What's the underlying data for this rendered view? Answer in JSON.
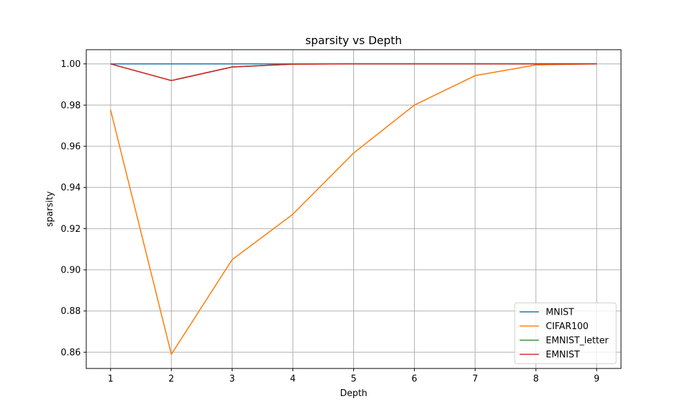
{
  "chart_data": {
    "type": "line",
    "title": "sparsity vs Depth",
    "xlabel": "Depth",
    "ylabel": "sparsity",
    "x": [
      1,
      2,
      3,
      4,
      5,
      6,
      7,
      8,
      9
    ],
    "xticks": [
      "1",
      "2",
      "3",
      "4",
      "5",
      "6",
      "7",
      "8",
      "9"
    ],
    "yticks": [
      "0.86",
      "0.88",
      "0.90",
      "0.92",
      "0.94",
      "0.96",
      "0.98",
      "1.00"
    ],
    "ytick_values": [
      0.86,
      0.88,
      0.9,
      0.92,
      0.94,
      0.96,
      0.98,
      1.0
    ],
    "xlim": [
      0.6,
      9.4
    ],
    "ylim": [
      0.8521,
      1.0069
    ],
    "grid": true,
    "legend_position": "bottom-right",
    "series": [
      {
        "name": "MNIST",
        "color": "#1f77b4",
        "values": [
          1.0,
          1.0,
          1.0,
          1.0,
          1.0,
          1.0,
          1.0,
          1.0,
          1.0
        ]
      },
      {
        "name": "CIFAR100",
        "color": "#ff7f0e",
        "values": [
          0.9777,
          0.859,
          0.9049,
          0.927,
          0.9567,
          0.98,
          0.9943,
          0.9995,
          1.0
        ]
      },
      {
        "name": "EMNIST_letter",
        "color": "#2ca02c",
        "values": [
          1.0,
          0.9919,
          0.9985,
          0.9999,
          1.0,
          1.0,
          1.0,
          1.0,
          1.0
        ]
      },
      {
        "name": "EMNIST",
        "color": "#d62728",
        "values": [
          1.0,
          0.9919,
          0.9985,
          0.9999,
          1.0,
          1.0,
          1.0,
          1.0,
          1.0
        ]
      }
    ]
  }
}
